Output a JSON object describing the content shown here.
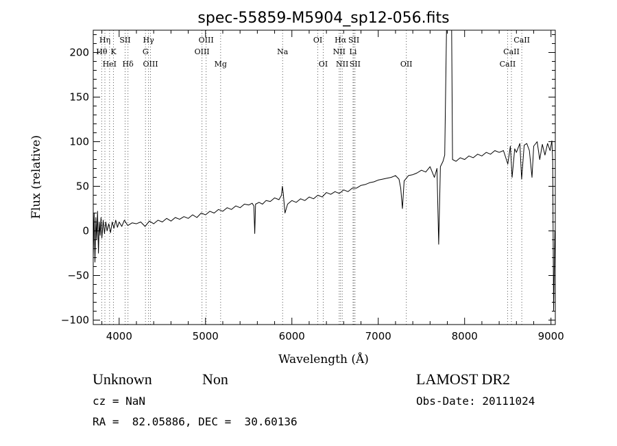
{
  "chart_data": {
    "type": "line",
    "title": "spec-55859-M5904_sp12-056.fits",
    "xlabel": "Wavelength (Å)",
    "ylabel": "Flux (relative)",
    "xlim": [
      3700,
      9050
    ],
    "ylim": [
      -105,
      225
    ],
    "xticks": [
      4000,
      5000,
      6000,
      7000,
      8000,
      9000
    ],
    "yticks": [
      -100,
      -50,
      0,
      50,
      100,
      150,
      200
    ],
    "grid": false,
    "line_color": "#000000",
    "marker_line_color": "#555555",
    "spectrum": [
      [
        3700,
        -30
      ],
      [
        3710,
        20
      ],
      [
        3720,
        -35
      ],
      [
        3730,
        15
      ],
      [
        3740,
        -10
      ],
      [
        3750,
        22
      ],
      [
        3760,
        -25
      ],
      [
        3770,
        10
      ],
      [
        3780,
        -5
      ],
      [
        3790,
        15
      ],
      [
        3800,
        -8
      ],
      [
        3815,
        12
      ],
      [
        3830,
        -3
      ],
      [
        3845,
        10
      ],
      [
        3860,
        0
      ],
      [
        3880,
        8
      ],
      [
        3900,
        -2
      ],
      [
        3920,
        10
      ],
      [
        3940,
        3
      ],
      [
        3960,
        12
      ],
      [
        3980,
        4
      ],
      [
        4000,
        10
      ],
      [
        4030,
        5
      ],
      [
        4060,
        12
      ],
      [
        4100,
        6
      ],
      [
        4150,
        9
      ],
      [
        4200,
        8
      ],
      [
        4250,
        10
      ],
      [
        4300,
        5
      ],
      [
        4350,
        11
      ],
      [
        4400,
        8
      ],
      [
        4450,
        12
      ],
      [
        4500,
        10
      ],
      [
        4550,
        14
      ],
      [
        4600,
        11
      ],
      [
        4650,
        15
      ],
      [
        4700,
        13
      ],
      [
        4750,
        16
      ],
      [
        4800,
        14
      ],
      [
        4850,
        18
      ],
      [
        4900,
        15
      ],
      [
        4950,
        20
      ],
      [
        5000,
        18
      ],
      [
        5050,
        22
      ],
      [
        5100,
        20
      ],
      [
        5150,
        24
      ],
      [
        5200,
        22
      ],
      [
        5250,
        26
      ],
      [
        5300,
        24
      ],
      [
        5350,
        28
      ],
      [
        5400,
        26
      ],
      [
        5450,
        30
      ],
      [
        5500,
        29
      ],
      [
        5540,
        31
      ],
      [
        5560,
        28
      ],
      [
        5570,
        -3
      ],
      [
        5580,
        30
      ],
      [
        5620,
        32
      ],
      [
        5660,
        30
      ],
      [
        5700,
        34
      ],
      [
        5750,
        33
      ],
      [
        5800,
        37
      ],
      [
        5850,
        35
      ],
      [
        5880,
        40
      ],
      [
        5890,
        50
      ],
      [
        5900,
        42
      ],
      [
        5920,
        20
      ],
      [
        5950,
        30
      ],
      [
        6000,
        34
      ],
      [
        6050,
        32
      ],
      [
        6100,
        36
      ],
      [
        6150,
        34
      ],
      [
        6200,
        38
      ],
      [
        6250,
        36
      ],
      [
        6300,
        40
      ],
      [
        6350,
        38
      ],
      [
        6400,
        43
      ],
      [
        6450,
        41
      ],
      [
        6500,
        44
      ],
      [
        6550,
        42
      ],
      [
        6600,
        46
      ],
      [
        6650,
        44
      ],
      [
        6700,
        48
      ],
      [
        6750,
        48
      ],
      [
        6800,
        51
      ],
      [
        6850,
        52
      ],
      [
        6900,
        54
      ],
      [
        6950,
        55
      ],
      [
        7000,
        57
      ],
      [
        7050,
        58
      ],
      [
        7100,
        59
      ],
      [
        7150,
        60
      ],
      [
        7200,
        62
      ],
      [
        7240,
        58
      ],
      [
        7260,
        48
      ],
      [
        7280,
        25
      ],
      [
        7300,
        56
      ],
      [
        7350,
        62
      ],
      [
        7400,
        63
      ],
      [
        7450,
        65
      ],
      [
        7500,
        68
      ],
      [
        7550,
        66
      ],
      [
        7600,
        72
      ],
      [
        7650,
        60
      ],
      [
        7680,
        70
      ],
      [
        7700,
        -15
      ],
      [
        7720,
        72
      ],
      [
        7750,
        78
      ],
      [
        7770,
        85
      ],
      [
        7790,
        225
      ],
      [
        7820,
        225
      ],
      [
        7850,
        225
      ],
      [
        7860,
        80
      ],
      [
        7900,
        78
      ],
      [
        7950,
        82
      ],
      [
        8000,
        80
      ],
      [
        8050,
        84
      ],
      [
        8100,
        82
      ],
      [
        8150,
        86
      ],
      [
        8200,
        84
      ],
      [
        8250,
        88
      ],
      [
        8300,
        86
      ],
      [
        8350,
        90
      ],
      [
        8400,
        88
      ],
      [
        8450,
        90
      ],
      [
        8500,
        75
      ],
      [
        8530,
        95
      ],
      [
        8550,
        60
      ],
      [
        8580,
        92
      ],
      [
        8600,
        88
      ],
      [
        8640,
        98
      ],
      [
        8660,
        58
      ],
      [
        8690,
        96
      ],
      [
        8720,
        98
      ],
      [
        8750,
        90
      ],
      [
        8780,
        60
      ],
      [
        8800,
        95
      ],
      [
        8840,
        100
      ],
      [
        8870,
        80
      ],
      [
        8900,
        97
      ],
      [
        8930,
        85
      ],
      [
        8960,
        98
      ],
      [
        8990,
        90
      ],
      [
        9010,
        101
      ],
      [
        9020,
        80
      ],
      [
        9030,
        -90
      ],
      [
        9045,
        0
      ]
    ],
    "line_markers": [
      {
        "label": "Hη",
        "x": 3835,
        "row": 1
      },
      {
        "label": "SII",
        "x": 4069,
        "row": 1
      },
      {
        "label": "Hγ",
        "x": 4340,
        "row": 1
      },
      {
        "label": "OIII",
        "x": 5007,
        "row": 1
      },
      {
        "label": "OI",
        "x": 6300,
        "row": 1
      },
      {
        "label": "Hα",
        "x": 6563,
        "row": 1
      },
      {
        "label": "SII",
        "x": 6717,
        "row": 1
      },
      {
        "label": "CaII",
        "x": 8662,
        "row": 1
      },
      {
        "label": "Hθ",
        "x": 3798,
        "row": 2
      },
      {
        "label": "K",
        "x": 3934,
        "row": 2
      },
      {
        "label": "G",
        "x": 4305,
        "row": 2
      },
      {
        "label": "OIII",
        "x": 4959,
        "row": 2
      },
      {
        "label": "Na",
        "x": 5893,
        "row": 2
      },
      {
        "label": "NII",
        "x": 6548,
        "row": 2
      },
      {
        "label": "Li",
        "x": 6708,
        "row": 2
      },
      {
        "label": "CaII",
        "x": 8542,
        "row": 2
      },
      {
        "label": "HeI",
        "x": 3889,
        "row": 3
      },
      {
        "label": "Hδ",
        "x": 4102,
        "row": 3
      },
      {
        "label": "OIII",
        "x": 4363,
        "row": 3
      },
      {
        "label": "Mg",
        "x": 5175,
        "row": 3
      },
      {
        "label": "OI",
        "x": 6363,
        "row": 3
      },
      {
        "label": "NII",
        "x": 6583,
        "row": 3
      },
      {
        "label": "SII",
        "x": 6731,
        "row": 3
      },
      {
        "label": "OII",
        "x": 7325,
        "row": 3
      },
      {
        "label": "CaII",
        "x": 8498,
        "row": 3
      }
    ]
  },
  "info": {
    "class": "Unknown",
    "subclass": "Non",
    "survey": "LAMOST DR2",
    "cz": "cz = NaN",
    "obs_date": "Obs-Date: 20111024",
    "coords": "RA =  82.05886, DEC =  30.60136"
  }
}
